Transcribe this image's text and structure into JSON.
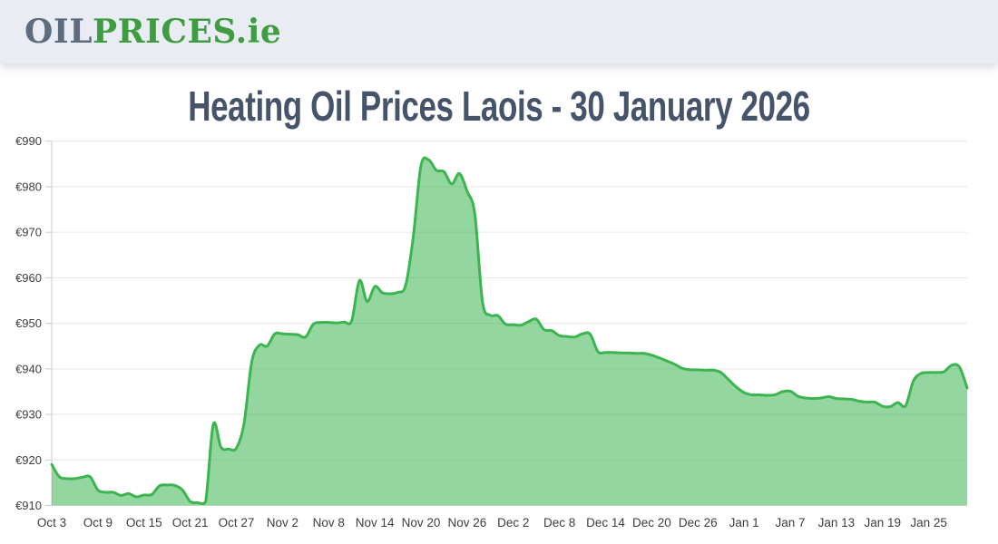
{
  "header": {
    "logo": {
      "oil": "OIL",
      "prices": "PRICES",
      "domain": ".ie"
    }
  },
  "title": "Heating Oil Prices Laois - 30 January 2026",
  "chart_data": {
    "type": "area",
    "title": "Heating Oil Prices Laois - 30 January 2026",
    "currency_prefix": "€",
    "ylim": [
      910,
      990
    ],
    "y_ticks": [
      910,
      920,
      930,
      940,
      950,
      960,
      970,
      980,
      990
    ],
    "x_total_days": 119,
    "x_ticks": [
      {
        "label": "Oct 3",
        "day": 0
      },
      {
        "label": "Oct 9",
        "day": 6
      },
      {
        "label": "Oct 15",
        "day": 12
      },
      {
        "label": "Oct 21",
        "day": 18
      },
      {
        "label": "Oct 27",
        "day": 24
      },
      {
        "label": "Nov 2",
        "day": 30
      },
      {
        "label": "Nov 8",
        "day": 36
      },
      {
        "label": "Nov 14",
        "day": 42
      },
      {
        "label": "Nov 20",
        "day": 48
      },
      {
        "label": "Nov 26",
        "day": 54
      },
      {
        "label": "Dec 2",
        "day": 60
      },
      {
        "label": "Dec 8",
        "day": 66
      },
      {
        "label": "Dec 14",
        "day": 72
      },
      {
        "label": "Dec 20",
        "day": 78
      },
      {
        "label": "Dec 26",
        "day": 84
      },
      {
        "label": "Jan 1",
        "day": 90
      },
      {
        "label": "Jan 7",
        "day": 96
      },
      {
        "label": "Jan 13",
        "day": 102
      },
      {
        "label": "Jan 19",
        "day": 108
      },
      {
        "label": "Jan 25",
        "day": 114
      }
    ],
    "values": [
      919.0,
      916.3,
      915.9,
      915.9,
      916.2,
      916.3,
      913.4,
      912.9,
      912.9,
      912.2,
      912.6,
      911.9,
      912.3,
      912.4,
      914.3,
      914.5,
      914.4,
      913.4,
      910.9,
      910.6,
      910.8,
      927.8,
      922.8,
      922.4,
      922.6,
      928.0,
      941.5,
      945.2,
      945.0,
      947.7,
      947.7,
      947.6,
      947.5,
      947.0,
      949.8,
      950.2,
      950.2,
      950.1,
      950.3,
      950.6,
      959.4,
      954.8,
      958.1,
      956.7,
      956.5,
      956.8,
      958.3,
      969.0,
      984.6,
      985.9,
      983.6,
      983.3,
      980.6,
      982.9,
      979.0,
      974.0,
      954.7,
      951.8,
      951.7,
      949.8,
      949.7,
      949.6,
      950.4,
      950.9,
      948.6,
      948.4,
      947.3,
      947.1,
      947.0,
      947.7,
      947.6,
      943.8,
      943.6,
      943.6,
      943.5,
      943.5,
      943.4,
      943.4,
      943.0,
      942.4,
      941.7,
      941.0,
      940.1,
      939.8,
      939.8,
      939.7,
      939.7,
      939.2,
      937.6,
      936.0,
      934.8,
      934.3,
      934.3,
      934.2,
      934.3,
      935.0,
      935.1,
      934.0,
      933.6,
      933.5,
      933.6,
      933.9,
      933.5,
      933.4,
      933.3,
      932.9,
      932.7,
      932.7,
      931.8,
      931.7,
      932.6,
      931.9,
      937.3,
      939.0,
      939.2,
      939.2,
      939.4,
      940.8,
      940.4,
      935.8
    ],
    "grid": true,
    "legend": false,
    "colors": {
      "line": "#3cb450",
      "fill": "rgba(60,180,80,0.55)",
      "grid": "#e6e6e6",
      "axis": "#cccccc",
      "tick_text": "#3d3d3d"
    }
  }
}
